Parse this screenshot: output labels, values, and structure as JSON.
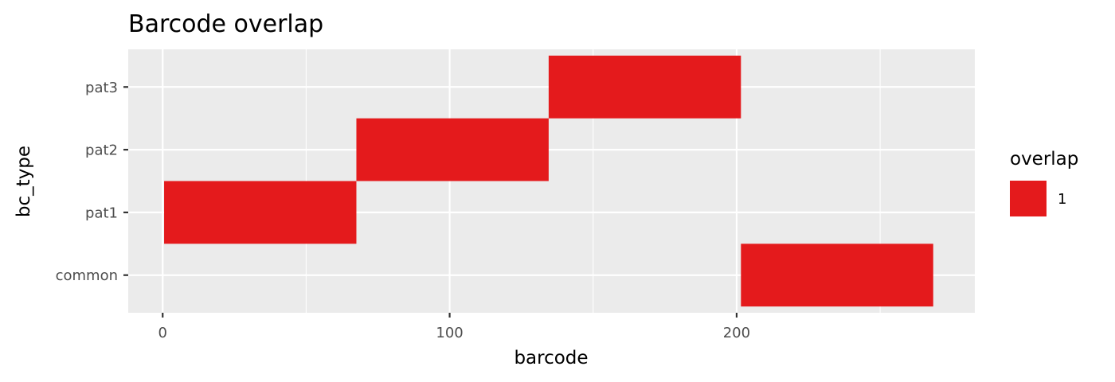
{
  "chart_data": {
    "type": "heatmap",
    "title": "Barcode overlap",
    "xlabel": "barcode",
    "ylabel": "bc_type",
    "xlim": [
      -12,
      283
    ],
    "x_ticks": [
      0,
      100,
      200
    ],
    "x_tick_labels": [
      "0",
      "100",
      "200"
    ],
    "categories": [
      "common",
      "pat1",
      "pat2",
      "pat3"
    ],
    "grid": true,
    "legend": {
      "title": "overlap",
      "position": "right",
      "entries": [
        {
          "label": "1",
          "color": "#e41a1c"
        }
      ]
    },
    "tiles": [
      {
        "category": "pat1",
        "x_start": 0.5,
        "x_end": 67.5,
        "overlap": 1
      },
      {
        "category": "pat2",
        "x_start": 67.5,
        "x_end": 134.5,
        "overlap": 1
      },
      {
        "category": "pat3",
        "x_start": 134.5,
        "x_end": 201.5,
        "overlap": 1
      },
      {
        "category": "common",
        "x_start": 201.5,
        "x_end": 268.5,
        "overlap": 1
      }
    ],
    "colors": {
      "fill": "#e41a1c",
      "panel": "#ebebeb",
      "grid": "#ffffff"
    }
  }
}
